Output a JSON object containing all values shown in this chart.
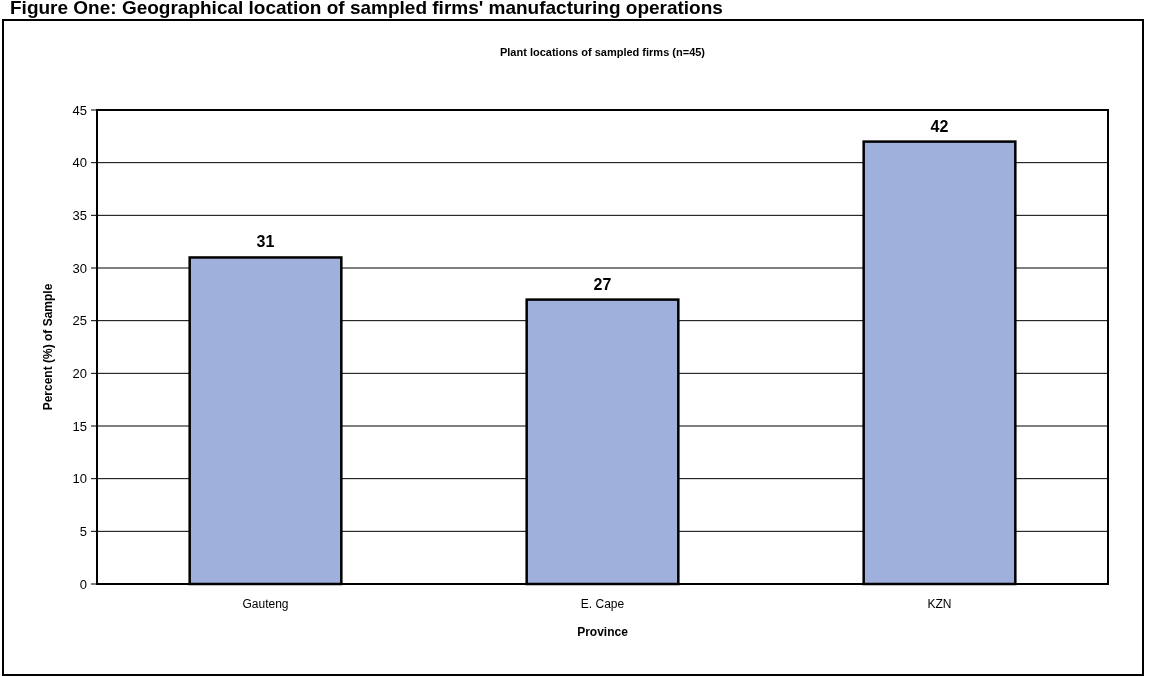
{
  "chart_data": {
    "type": "bar",
    "title": "Figure One: Geographical location of sampled firms' manufacturing operations",
    "subtitle": "Plant locations of sampled firms (n=45)",
    "xlabel": "Province",
    "ylabel": "Percent (%) of Sample",
    "categories": [
      "Gauteng",
      "E. Cape",
      "KZN"
    ],
    "values": [
      31,
      27,
      42
    ],
    "color": "#9fb0dc",
    "ylim": [
      0,
      45
    ],
    "yticks": [
      0,
      5,
      10,
      15,
      20,
      25,
      30,
      35,
      40,
      45
    ],
    "grid": "y",
    "data_labels": true
  }
}
